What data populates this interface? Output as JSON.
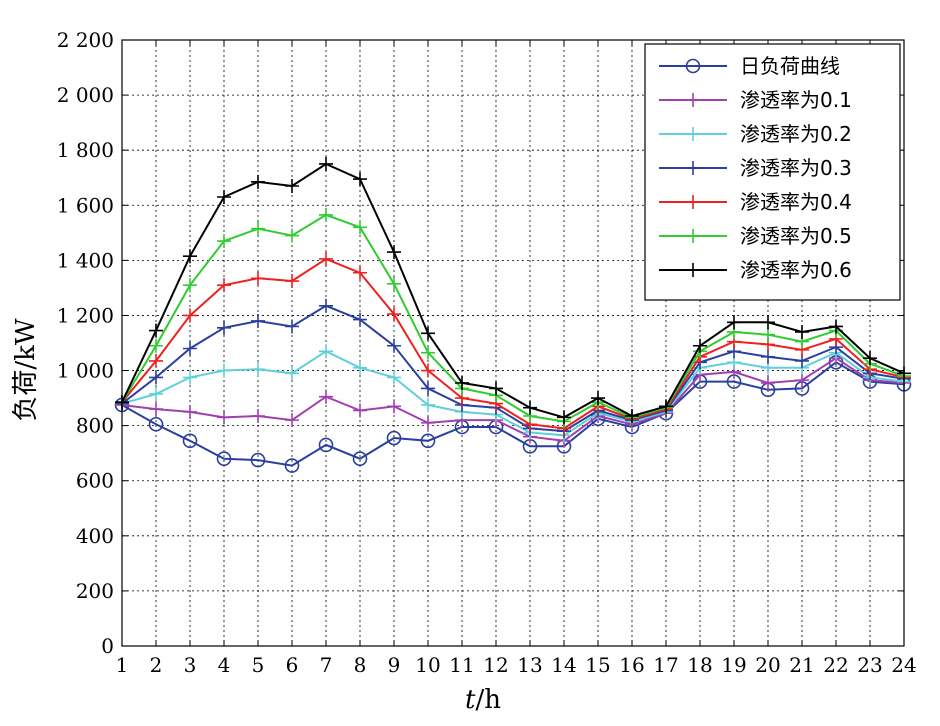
{
  "chart_data": {
    "type": "line",
    "xlabel_italic": "t",
    "xlabel_unit": "/h",
    "ylabel": "负荷/kW",
    "x": [
      1,
      2,
      3,
      4,
      5,
      6,
      7,
      8,
      9,
      10,
      11,
      12,
      13,
      14,
      15,
      16,
      17,
      18,
      19,
      20,
      21,
      22,
      23,
      24
    ],
    "xlim": [
      1,
      24
    ],
    "ylim": [
      0,
      2200
    ],
    "yticks": [
      0,
      200,
      400,
      600,
      800,
      1000,
      1200,
      1400,
      1600,
      1800,
      2000,
      2200
    ],
    "ytick_labels": [
      "0",
      "200",
      "400",
      "600",
      "800",
      "1 000",
      "1 200",
      "1 400",
      "1 600",
      "1 800",
      "2 000",
      "2 200"
    ],
    "grid": true,
    "legend_position": "top-right",
    "series": [
      {
        "name": "日负荷曲线",
        "color": "#2b3f9e",
        "marker": "circle",
        "values": [
          875,
          805,
          745,
          680,
          675,
          655,
          730,
          680,
          755,
          745,
          795,
          795,
          725,
          725,
          825,
          795,
          845,
          960,
          960,
          930,
          935,
          1030,
          960,
          950
        ]
      },
      {
        "name": "渗透率为0.1",
        "color": "#a040b0",
        "marker": "plus",
        "values": [
          875,
          860,
          850,
          830,
          835,
          820,
          905,
          855,
          870,
          810,
          820,
          820,
          760,
          745,
          835,
          805,
          845,
          985,
          995,
          955,
          965,
          1045,
          965,
          955
        ]
      },
      {
        "name": "渗透率为0.2",
        "color": "#60d0d8",
        "marker": "plus",
        "values": [
          880,
          915,
          975,
          1000,
          1005,
          990,
          1070,
          1010,
          975,
          875,
          850,
          840,
          775,
          765,
          845,
          815,
          850,
          1010,
          1030,
          1010,
          1010,
          1065,
          975,
          960
        ]
      },
      {
        "name": "渗透率为0.3",
        "color": "#2b3f9e",
        "marker": "plus",
        "values": [
          880,
          975,
          1080,
          1155,
          1180,
          1160,
          1235,
          1185,
          1090,
          935,
          875,
          865,
          790,
          780,
          855,
          820,
          855,
          1030,
          1070,
          1050,
          1035,
          1085,
          990,
          970
        ]
      },
      {
        "name": "渗透率为0.4",
        "color": "#ee2020",
        "marker": "plus",
        "values": [
          885,
          1035,
          1200,
          1310,
          1335,
          1325,
          1405,
          1355,
          1205,
          1000,
          900,
          880,
          805,
          790,
          870,
          825,
          860,
          1050,
          1105,
          1095,
          1075,
          1115,
          1005,
          975
        ]
      },
      {
        "name": "渗透率为0.5",
        "color": "#30cc30",
        "marker": "plus",
        "values": [
          885,
          1090,
          1310,
          1470,
          1515,
          1490,
          1565,
          1520,
          1315,
          1065,
          935,
          910,
          835,
          815,
          885,
          830,
          865,
          1070,
          1140,
          1130,
          1105,
          1145,
          1025,
          980
        ]
      },
      {
        "name": "渗透率为0.6",
        "color": "#000000",
        "marker": "plus",
        "values": [
          885,
          1145,
          1415,
          1630,
          1685,
          1670,
          1750,
          1695,
          1430,
          1135,
          955,
          935,
          865,
          830,
          900,
          835,
          870,
          1090,
          1175,
          1175,
          1140,
          1160,
          1045,
          990
        ]
      }
    ]
  }
}
